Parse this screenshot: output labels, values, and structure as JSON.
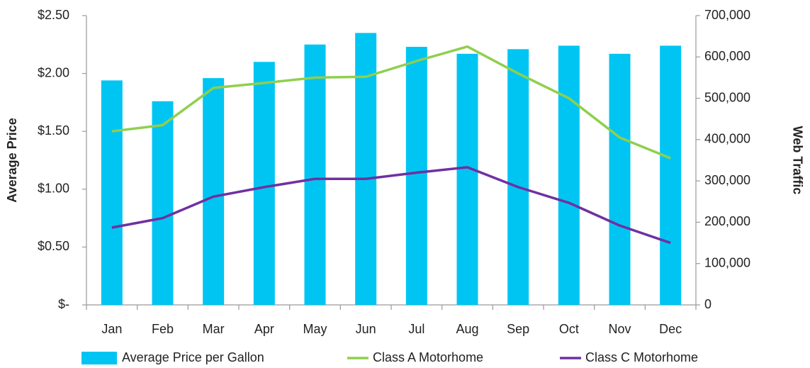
{
  "chart_data": {
    "type": "combo",
    "ylabel": "Average Price",
    "y2label": "Web Traffic",
    "categories": [
      "Jan",
      "Feb",
      "Mar",
      "Apr",
      "May",
      "Jun",
      "Jul",
      "Aug",
      "Sep",
      "Oct",
      "Nov",
      "Dec"
    ],
    "series": [
      {
        "name": "Average Price per Gallon",
        "type": "bar",
        "color": "#00c5f2",
        "axis": "y",
        "values": [
          1.94,
          1.76,
          1.96,
          2.1,
          2.25,
          2.35,
          2.23,
          2.17,
          2.21,
          2.24,
          2.17,
          2.24
        ]
      },
      {
        "name": "Class A Motorhome",
        "type": "line",
        "color": "#8fcf4e",
        "axis": "y2",
        "values": [
          420000,
          435000,
          525000,
          537000,
          550000,
          552000,
          590000,
          625000,
          560000,
          500000,
          405000,
          355000
        ]
      },
      {
        "name": "Class C Motorhome",
        "type": "line",
        "color": "#7030a0",
        "axis": "y2",
        "values": [
          187000,
          210000,
          262000,
          285000,
          305000,
          305000,
          320000,
          333000,
          285000,
          247000,
          192000,
          150000
        ]
      }
    ],
    "ylim": [
      0,
      2.5
    ],
    "yticks": [
      {
        "value": 0,
        "label": "$-"
      },
      {
        "value": 0.5,
        "label": "$0.50"
      },
      {
        "value": 1,
        "label": "$1.00"
      },
      {
        "value": 1.5,
        "label": "$1.50"
      },
      {
        "value": 2,
        "label": "$2.00"
      },
      {
        "value": 2.5,
        "label": "$2.50"
      }
    ],
    "y2lim": [
      0,
      700000
    ],
    "y2ticks": [
      0,
      {
        "value": 100000,
        "label": "100,000"
      },
      {
        "value": 200000,
        "label": "200,000"
      },
      {
        "value": 300000,
        "label": "300,000"
      },
      {
        "value": 400000,
        "label": "400,000"
      },
      {
        "value": 500000,
        "label": "500,000"
      },
      {
        "value": 600000,
        "label": "600,000"
      },
      {
        "value": 700000,
        "label": "700,000"
      }
    ],
    "grid": false
  }
}
